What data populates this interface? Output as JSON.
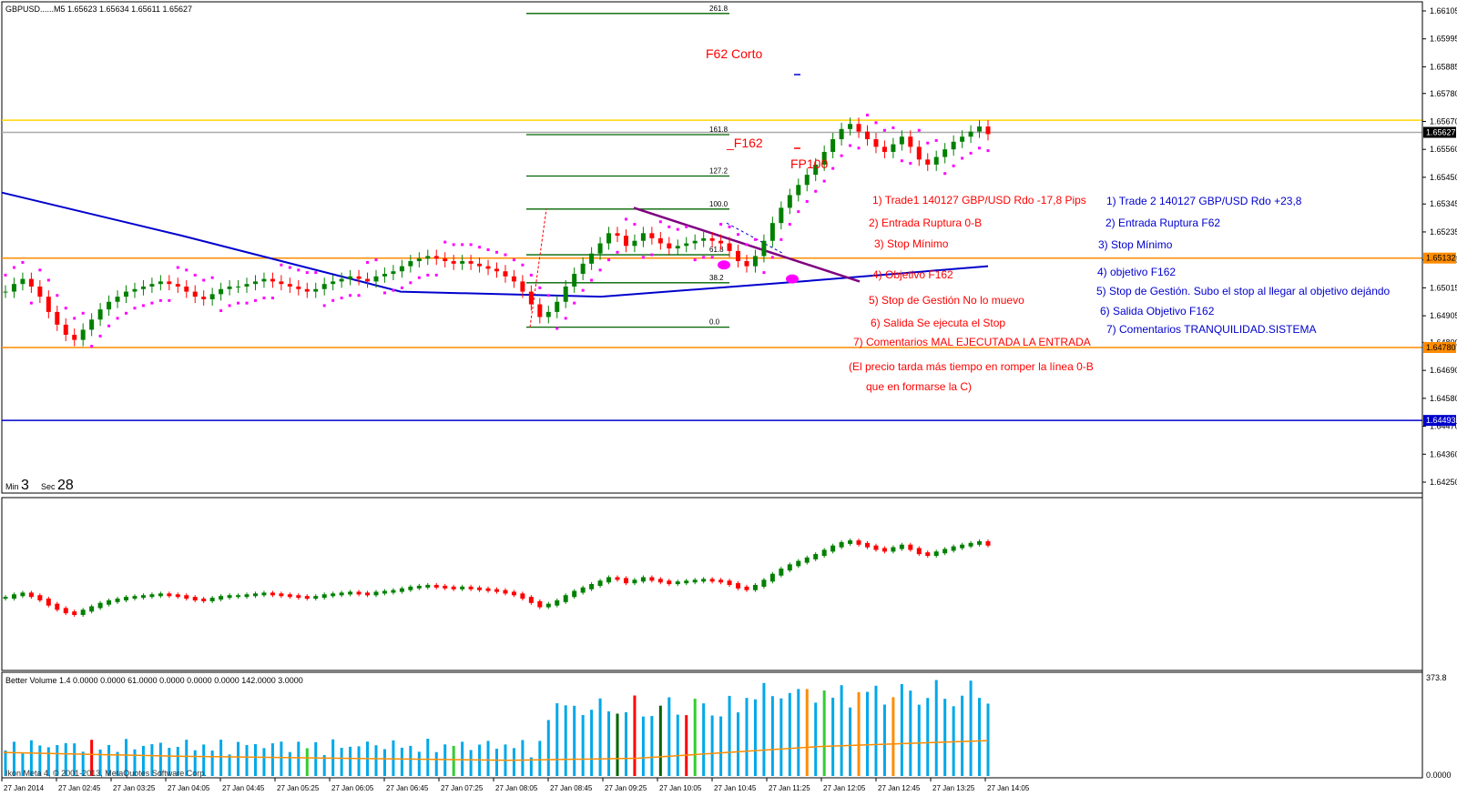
{
  "header": {
    "symbol_line": "GBPUSD......M5  1.65623 1.65634 1.65611 1.65627"
  },
  "timer": {
    "min_label": "Min",
    "min_value": "3",
    "sec_label": "Sec",
    "sec_value": "28"
  },
  "price_axis": {
    "ticks": [
      "1.66105",
      "1.65995",
      "1.65885",
      "1.65780",
      "1.65670",
      "1.65560",
      "1.65450",
      "1.65345",
      "1.65235",
      "1.65125",
      "1.65015",
      "1.64905",
      "1.64800",
      "1.64690",
      "1.64580",
      "1.64470",
      "1.64360",
      "1.64250"
    ],
    "labels": [
      {
        "text": "1.65627",
        "value": 1.65627,
        "color": "#000000",
        "text_color": "#ffffff"
      },
      {
        "text": "1.65132",
        "value": 1.65132,
        "color": "#ff8c00",
        "text_color": "#000000"
      },
      {
        "text": "1.64780",
        "value": 1.6478,
        "color": "#ff8c00",
        "text_color": "#000000"
      },
      {
        "text": "1.64493",
        "value": 1.64493,
        "color": "#0000cd",
        "text_color": "#ffffff"
      }
    ]
  },
  "time_axis": {
    "ticks": [
      "27 Jan 2014",
      "27 Jan 02:45",
      "27 Jan 03:25",
      "27 Jan 04:05",
      "27 Jan 04:45",
      "27 Jan 05:25",
      "27 Jan 06:05",
      "27 Jan 06:45",
      "27 Jan 07:25",
      "27 Jan 08:05",
      "27 Jan 08:45",
      "27 Jan 09:25",
      "27 Jan 10:05",
      "27 Jan 10:45",
      "27 Jan 11:25",
      "27 Jan 12:05",
      "27 Jan 12:45",
      "27 Jan 13:25",
      "27 Jan 14:05"
    ]
  },
  "fibonacci": {
    "levels": [
      {
        "label": "261.8",
        "value": 1.66095
      },
      {
        "label": "161.8",
        "value": 1.65618
      },
      {
        "label": "127.2",
        "value": 1.65455
      },
      {
        "label": "100.0",
        "value": 1.65325
      },
      {
        "label": "61.8",
        "value": 1.65145
      },
      {
        "label": "38.2",
        "value": 1.65035
      },
      {
        "label": "0.0",
        "value": 1.6486
      }
    ]
  },
  "horizontal_lines": [
    {
      "value": 1.65675,
      "color": "#ffd700"
    },
    {
      "value": 1.65627,
      "color": "#a9a9a9"
    },
    {
      "value": 1.65132,
      "color": "#ff8c00"
    },
    {
      "value": 1.6478,
      "color": "#ff8c00"
    },
    {
      "value": 1.64493,
      "color": "#0000cd"
    }
  ],
  "chart_labels": [
    {
      "text": "F62 Corto",
      "color": "#ff0000"
    },
    {
      "text": "_F162",
      "color": "#ff0000"
    },
    {
      "text": "FP100",
      "color": "#ff0000"
    }
  ],
  "trade1": {
    "color": "#ff0000",
    "lines": [
      "1) Trade1 140127 GBP/USD Rdo -17,8 Pips",
      "2) Entrada Ruptura 0-B",
      "3) Stop Mínimo",
      "4) Objetivo F162",
      "5) Stop de Gestión No lo muevo",
      "6) Salida Se ejecuta el Stop",
      "7) Comentarios MAL EJECUTADA LA ENTRADA",
      "(El precio tarda más tiempo en romper la línea 0-B",
      "que en formarse la C)"
    ]
  },
  "trade2": {
    "color": "#0000cd",
    "lines": [
      "1) Trade 2 140127 GBP/USD Rdo +23,8",
      "2) Entrada Ruptura F62",
      "3) Stop Mínimo",
      "4) objetivo F162",
      "5) Stop de Gestión.  Subo el stop al llegar al objetivo dejándo",
      "6) Salida Objetivo F162",
      "7) Comentarios TRANQUILIDAD.SISTEMA"
    ]
  },
  "volume_panel": {
    "header": "Better Volume 1.4 0.0000 0.0000 61.0000 0.0000 0.0000 0.0000 142.0000 3.0000",
    "max_label": "373.8",
    "zero_label": "0.0000",
    "copyright": "Ikon Meta 4, © 2001-2013, MetaQuotes Software Corp."
  },
  "colors": {
    "bull": "#008000",
    "bear": "#ff0000",
    "psar": "#ff00ff",
    "ma": "#0000cd",
    "fib": "#006400",
    "vol_blue": "#00a8e8",
    "vol_red": "#ff0000",
    "vol_green": "#32cd32",
    "vol_dkgreen": "#006400",
    "vol_orange": "#ff8c00",
    "trendline": "#800080"
  },
  "chart_data": {
    "type": "candlestick",
    "timeframe": "M5",
    "y_range": [
      1.6421,
      1.6613
    ],
    "close_series": [
      1.65,
      1.6503,
      1.6505,
      1.6502,
      1.6498,
      1.6492,
      1.6487,
      1.6483,
      1.6481,
      1.6485,
      1.6489,
      1.6493,
      1.6496,
      1.6498,
      1.65,
      1.6501,
      1.6502,
      1.6503,
      1.6504,
      1.6503,
      1.6502,
      1.65,
      1.6498,
      1.6497,
      1.6499,
      1.6501,
      1.6502,
      1.6502,
      1.6503,
      1.6504,
      1.6505,
      1.6504,
      1.6503,
      1.6502,
      1.6501,
      1.65,
      1.6501,
      1.6503,
      1.6504,
      1.6505,
      1.6506,
      1.6505,
      1.6504,
      1.6506,
      1.6507,
      1.6508,
      1.651,
      1.6512,
      1.6513,
      1.6514,
      1.6513,
      1.6512,
      1.6511,
      1.6512,
      1.6511,
      1.651,
      1.6509,
      1.6508,
      1.6506,
      1.6504,
      1.65,
      1.6495,
      1.649,
      1.6492,
      1.6496,
      1.6502,
      1.6507,
      1.6511,
      1.6515,
      1.6519,
      1.6523,
      1.6522,
      1.6518,
      1.652,
      1.6523,
      1.6521,
      1.6519,
      1.6517,
      1.6518,
      1.6519,
      1.652,
      1.6521,
      1.652,
      1.6519,
      1.6516,
      1.6512,
      1.651,
      1.6514,
      1.652,
      1.6527,
      1.6533,
      1.6538,
      1.6542,
      1.6546,
      1.655,
      1.6555,
      1.656,
      1.6564,
      1.6566,
      1.6563,
      1.656,
      1.6557,
      1.6555,
      1.6558,
      1.6561,
      1.6557,
      1.6552,
      1.655,
      1.6553,
      1.6556,
      1.6559,
      1.6561,
      1.6563,
      1.6565,
      1.6562
    ]
  }
}
